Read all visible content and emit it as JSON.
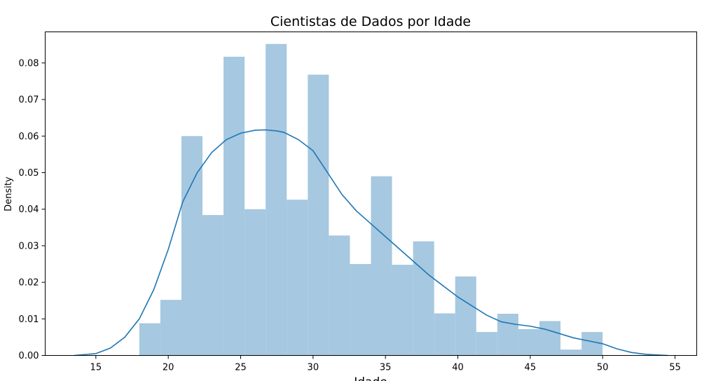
{
  "chart_data": {
    "type": "bar",
    "title": "Cientistas de Dados por Idade",
    "xlabel": "Idade",
    "ylabel": "Density",
    "xlim": [
      11.5,
      56.5
    ],
    "ylim": [
      0,
      0.0885
    ],
    "x_ticks": [
      15,
      20,
      25,
      30,
      35,
      40,
      45,
      50,
      55
    ],
    "y_ticks": [
      0.0,
      0.01,
      0.02,
      0.03,
      0.04,
      0.05,
      0.06,
      0.07,
      0.08
    ],
    "y_tick_labels": [
      "0.00",
      "0.01",
      "0.02",
      "0.03",
      "0.04",
      "0.05",
      "0.06",
      "0.07",
      "0.08"
    ],
    "grid": false,
    "bar_color": "#a6c8e0",
    "line_color": "#1f77b4",
    "histogram": {
      "bin_edges": [
        18.0,
        19.454545,
        20.909091,
        22.363636,
        23.818182,
        25.272727,
        26.727273,
        28.181818,
        29.636364,
        31.090909,
        32.545455,
        34.0,
        35.454545,
        36.909091,
        38.363636,
        39.818182,
        41.272727,
        42.727273,
        44.181818,
        45.636364,
        47.090909,
        48.545455,
        50.0
      ],
      "densities": [
        0.0088,
        0.0152,
        0.06,
        0.0384,
        0.0817,
        0.04,
        0.0852,
        0.0426,
        0.0768,
        0.0328,
        0.025,
        0.049,
        0.0248,
        0.0312,
        0.0115,
        0.0216,
        0.0064,
        0.0114,
        0.0072,
        0.0094,
        0.0016,
        0.0064
      ]
    },
    "kde": {
      "x": [
        13.5,
        15,
        16,
        17,
        18,
        19,
        20,
        21,
        22,
        23,
        24,
        25,
        26,
        26.7,
        27.5,
        28,
        29,
        30,
        31,
        32,
        33,
        34,
        35,
        36,
        37,
        38,
        39,
        40,
        41,
        42,
        43,
        44,
        45,
        46,
        47,
        48,
        49,
        50,
        51,
        52,
        53,
        54.5
      ],
      "y": [
        0.0,
        0.0005,
        0.002,
        0.005,
        0.01,
        0.018,
        0.029,
        0.042,
        0.05,
        0.0555,
        0.059,
        0.0608,
        0.0616,
        0.0617,
        0.0614,
        0.061,
        0.059,
        0.056,
        0.05,
        0.044,
        0.0395,
        0.036,
        0.0325,
        0.029,
        0.0255,
        0.022,
        0.019,
        0.016,
        0.0135,
        0.011,
        0.0092,
        0.0085,
        0.008,
        0.0072,
        0.006,
        0.0048,
        0.004,
        0.0032,
        0.0018,
        0.0008,
        0.0003,
        0.0
      ]
    }
  }
}
